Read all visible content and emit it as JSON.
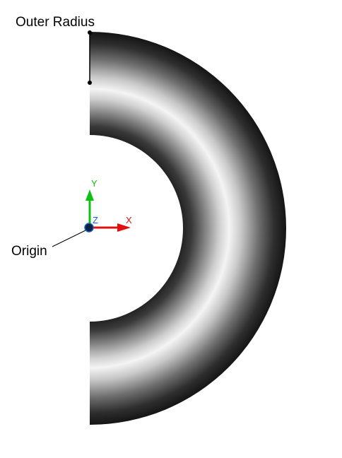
{
  "labels": {
    "outer_radius": "Outer Radius",
    "origin": "Origin"
  },
  "triad": {
    "x_label": "X",
    "y_label": "Y",
    "z_label": "Z",
    "x_color": "#e01010",
    "y_color": "#10c010",
    "z_color": "#1060d0",
    "origin_color": "#102040"
  },
  "colors": {
    "background": "#ffffff",
    "shade_dark": "#1a1a1a",
    "shade_light": "#f2f2f2",
    "leader_line": "#000000"
  }
}
